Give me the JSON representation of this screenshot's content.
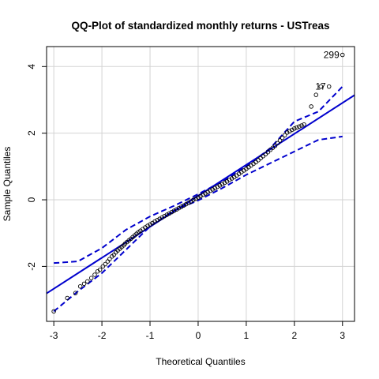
{
  "chart_data": {
    "type": "scatter",
    "title": "QQ-Plot of standardized monthly returns - USTreas",
    "xlabel": "Theoretical Quantiles",
    "ylabel": "Sample Quantiles",
    "xlim": [
      -3.15,
      3.25
    ],
    "ylim": [
      -3.65,
      4.6
    ],
    "xticks": [
      -3,
      -2,
      -1,
      0,
      1,
      2,
      3
    ],
    "yticks": [
      -2,
      0,
      2,
      4
    ],
    "grid": true,
    "colors": {
      "points": "#000000",
      "reference_line": "#0000CD",
      "envelope": "#0000CD",
      "grid": "#D3D3D3"
    },
    "reference_line": {
      "intercept": 0.12,
      "slope": 0.93
    },
    "envelope": {
      "x": [
        -3,
        -2.5,
        -2,
        -1.5,
        -1,
        -0.5,
        0,
        0.5,
        1,
        1.5,
        2,
        2.5,
        3
      ],
      "upper": [
        -1.9,
        -1.85,
        -1.45,
        -0.9,
        -0.5,
        -0.18,
        0.17,
        0.55,
        1.0,
        1.55,
        2.35,
        2.65,
        3.4
      ],
      "lower": [
        -3.35,
        -2.75,
        -2.2,
        -1.5,
        -0.8,
        -0.32,
        -0.02,
        0.35,
        0.75,
        1.1,
        1.45,
        1.8,
        1.9
      ]
    },
    "points": {
      "x": [
        -3.0,
        -2.72,
        -2.55,
        -2.45,
        -2.37,
        -2.3,
        -2.22,
        -2.15,
        -2.09,
        -2.04,
        -1.98,
        -1.93,
        -1.88,
        -1.84,
        -1.79,
        -1.75,
        -1.71,
        -1.67,
        -1.63,
        -1.59,
        -1.55,
        -1.52,
        -1.48,
        -1.44,
        -1.4,
        -1.36,
        -1.32,
        -1.28,
        -1.24,
        -1.2,
        -1.15,
        -1.1,
        -1.05,
        -1.0,
        -0.95,
        -0.9,
        -0.85,
        -0.8,
        -0.75,
        -0.7,
        -0.65,
        -0.6,
        -0.55,
        -0.5,
        -0.45,
        -0.4,
        -0.35,
        -0.3,
        -0.25,
        -0.2,
        -0.15,
        -0.1,
        -0.05,
        0.0,
        0.05,
        0.1,
        0.15,
        0.2,
        0.25,
        0.3,
        0.35,
        0.4,
        0.45,
        0.5,
        0.55,
        0.6,
        0.65,
        0.7,
        0.75,
        0.8,
        0.85,
        0.9,
        0.95,
        1.0,
        1.05,
        1.1,
        1.15,
        1.2,
        1.25,
        1.3,
        1.35,
        1.4,
        1.45,
        1.5,
        1.55,
        1.6,
        1.65,
        1.7,
        1.75,
        1.8,
        1.85,
        1.9,
        1.95,
        2.0,
        2.05,
        2.1,
        2.15,
        2.2,
        2.35,
        2.45,
        2.55,
        2.72,
        3.0
      ],
      "y": [
        -3.35,
        -2.95,
        -2.8,
        -2.6,
        -2.52,
        -2.45,
        -2.35,
        -2.25,
        -2.15,
        -2.1,
        -2.0,
        -1.93,
        -1.85,
        -1.78,
        -1.7,
        -1.65,
        -1.58,
        -1.52,
        -1.47,
        -1.42,
        -1.37,
        -1.32,
        -1.27,
        -1.22,
        -1.17,
        -1.12,
        -1.07,
        -1.02,
        -0.97,
        -0.93,
        -0.88,
        -0.83,
        -0.78,
        -0.74,
        -0.7,
        -0.65,
        -0.61,
        -0.57,
        -0.53,
        -0.49,
        -0.45,
        -0.41,
        -0.37,
        -0.33,
        -0.29,
        -0.25,
        -0.21,
        -0.17,
        -0.13,
        -0.09,
        -0.05,
        0.0,
        0.03,
        0.07,
        0.11,
        0.15,
        0.19,
        0.23,
        0.27,
        0.31,
        0.35,
        0.39,
        0.43,
        0.47,
        0.51,
        0.55,
        0.6,
        0.64,
        0.68,
        0.73,
        0.78,
        0.83,
        0.88,
        0.93,
        0.98,
        1.03,
        1.08,
        1.13,
        1.19,
        1.25,
        1.31,
        1.37,
        1.43,
        1.5,
        1.56,
        1.62,
        1.7,
        1.78,
        1.86,
        1.94,
        2.02,
        2.06,
        2.1,
        2.14,
        2.17,
        2.2,
        2.23,
        2.26,
        2.8,
        3.15,
        3.4,
        3.4,
        4.35
      ]
    },
    "point_labels": [
      {
        "text": "299",
        "x": 3.0,
        "y": 4.35
      },
      {
        "text": "17",
        "x": 2.72,
        "y": 3.4
      }
    ]
  }
}
